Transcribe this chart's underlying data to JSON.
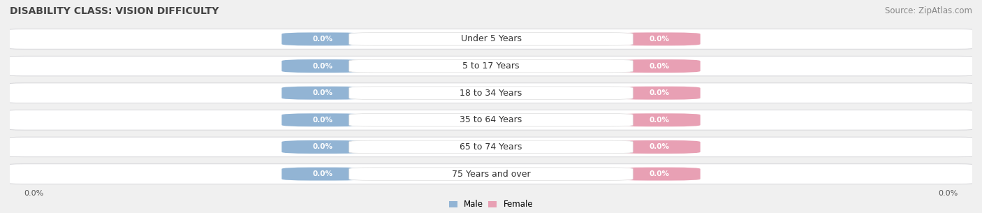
{
  "title": "DISABILITY CLASS: VISION DIFFICULTY",
  "source": "Source: ZipAtlas.com",
  "categories": [
    "Under 5 Years",
    "5 to 17 Years",
    "18 to 34 Years",
    "35 to 64 Years",
    "65 to 74 Years",
    "75 Years and over"
  ],
  "male_values": [
    0.0,
    0.0,
    0.0,
    0.0,
    0.0,
    0.0
  ],
  "female_values": [
    0.0,
    0.0,
    0.0,
    0.0,
    0.0,
    0.0
  ],
  "male_color": "#92b4d4",
  "female_color": "#e8a0b4",
  "male_label": "Male",
  "female_label": "Female",
  "bar_bg_edge_color": "#cccccc",
  "label_color_male": "white",
  "label_color_female": "white",
  "title_color": "#444444",
  "source_color": "#888888",
  "title_fontsize": 10,
  "source_fontsize": 8.5,
  "label_fontsize": 7.5,
  "category_fontsize": 9,
  "axis_label_fontsize": 8,
  "fig_width": 14.06,
  "fig_height": 3.05,
  "background_color": "#f0f0f0",
  "row_bg_color": "#e8e8ec",
  "row_bg_alt": "#ffffff",
  "x_left_label": "0.0%",
  "x_right_label": "0.0%"
}
